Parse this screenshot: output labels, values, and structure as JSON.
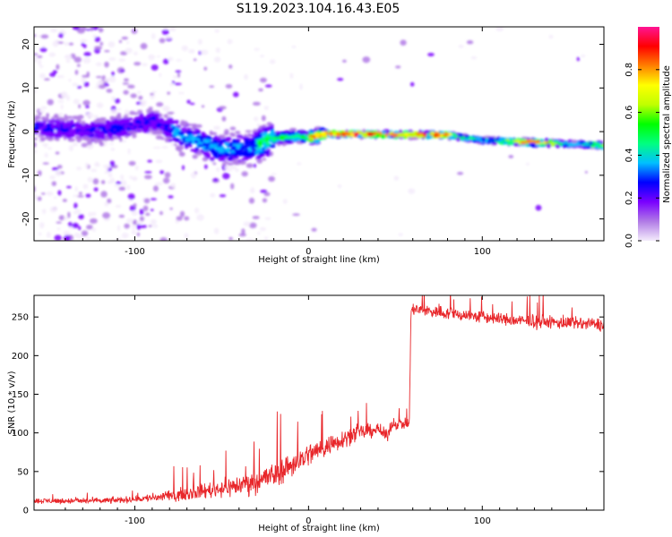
{
  "title": "S119.2023.104.16.43.E05",
  "chart_data": [
    {
      "type": "heatmap",
      "xlabel": "Height of straight line (km)",
      "ylabel": "Frequency (Hz)",
      "xlim": [
        -158,
        170
      ],
      "ylim": [
        -25,
        24
      ],
      "xticks": [
        -100,
        0,
        100
      ],
      "yticks": [
        -20,
        -10,
        0,
        10,
        20
      ],
      "colorbar": {
        "label": "Normalized spectral amplitude",
        "range": [
          0,
          1
        ],
        "ticks": [
          "0.0",
          "0.2",
          "0.4",
          "0.6",
          "0.8"
        ],
        "colors": [
          "#f4ecfb",
          "#b07ae6",
          "#7a00ff",
          "#0000ff",
          "#00bfff",
          "#00ff80",
          "#00ff00",
          "#c0ff00",
          "#ffff00",
          "#ff8000",
          "#ff0000",
          "#ff1493"
        ]
      },
      "ridge": [
        {
          "x": -155,
          "f": 1.0
        },
        {
          "x": -120,
          "f": 0.0
        },
        {
          "x": -90,
          "f": 2.5
        },
        {
          "x": -70,
          "f": -1.5
        },
        {
          "x": -50,
          "f": -4.0
        },
        {
          "x": -35,
          "f": -4.0
        },
        {
          "x": -20,
          "f": -1.5
        },
        {
          "x": -5,
          "f": -1.0
        },
        {
          "x": 0,
          "f": -1.5
        },
        {
          "x": 10,
          "f": -0.5
        },
        {
          "x": 80,
          "f": -0.8
        },
        {
          "x": 100,
          "f": -2.0
        },
        {
          "x": 130,
          "f": -2.5
        },
        {
          "x": 150,
          "f": -2.8
        },
        {
          "x": 170,
          "f": -3.2
        }
      ]
    },
    {
      "type": "line",
      "xlabel": "Height of straight line (km)",
      "ylabel": "SNR (10 * v/v)",
      "xlim": [
        -158,
        170
      ],
      "ylim": [
        0,
        278
      ],
      "xticks": [
        -100,
        0,
        100
      ],
      "yticks": [
        0,
        50,
        100,
        150,
        200,
        250
      ],
      "color": "#e8262a",
      "trend": [
        {
          "x": -158,
          "y": 12
        },
        {
          "x": -120,
          "y": 12
        },
        {
          "x": -100,
          "y": 14
        },
        {
          "x": -80,
          "y": 18
        },
        {
          "x": -60,
          "y": 25
        },
        {
          "x": -40,
          "y": 32
        },
        {
          "x": -20,
          "y": 45
        },
        {
          "x": 0,
          "y": 72
        },
        {
          "x": 10,
          "y": 82
        },
        {
          "x": 25,
          "y": 98
        },
        {
          "x": 40,
          "y": 105
        },
        {
          "x": 45,
          "y": 95
        },
        {
          "x": 48,
          "y": 112
        },
        {
          "x": 58,
          "y": 112
        },
        {
          "x": 59,
          "y": 260
        },
        {
          "x": 80,
          "y": 255
        },
        {
          "x": 120,
          "y": 245
        },
        {
          "x": 170,
          "y": 240
        }
      ],
      "noise": [
        {
          "x": -158,
          "a": 5
        },
        {
          "x": -100,
          "a": 6
        },
        {
          "x": -60,
          "a": 14
        },
        {
          "x": -20,
          "a": 25
        },
        {
          "x": 0,
          "a": 22
        },
        {
          "x": 40,
          "a": 12
        },
        {
          "x": 58,
          "a": 10
        },
        {
          "x": 60,
          "a": 12
        },
        {
          "x": 170,
          "a": 12
        }
      ]
    }
  ]
}
